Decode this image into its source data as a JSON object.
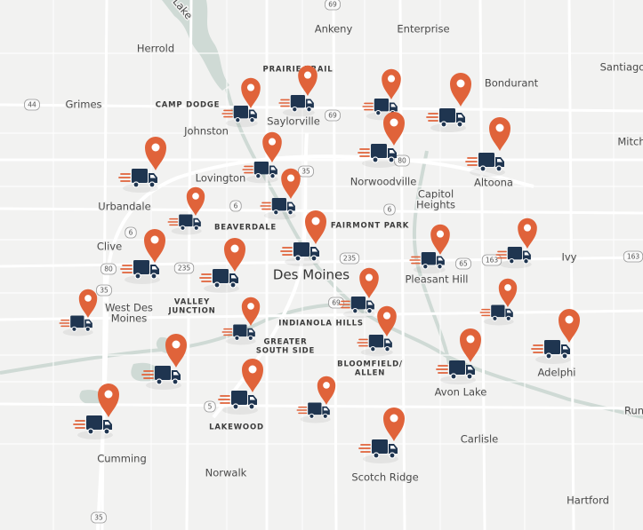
{
  "map": {
    "cities": [
      [
        "Lake"
      ],
      [
        "Ankeny"
      ],
      [
        "Enterprise"
      ],
      [
        "Herrold"
      ],
      [
        "Santiago"
      ],
      [
        "Bondurant"
      ],
      [
        "Grimes"
      ],
      [
        "Saylorville"
      ],
      [
        "Johnston"
      ],
      [
        "Mitch"
      ],
      [
        "Lovington"
      ],
      [
        "Norwoodville"
      ],
      [
        "Altoona"
      ],
      [
        "Capitol",
        "Heights"
      ],
      [
        "Urbandale"
      ],
      [
        "Clive"
      ],
      [
        "Ivy"
      ],
      [
        "Des Moines"
      ],
      [
        "Pleasant Hill"
      ],
      [
        "West Des",
        "Moines"
      ],
      [
        "Adelphi"
      ],
      [
        "Avon Lake"
      ],
      [
        "Run"
      ],
      [
        "Carlisle"
      ],
      [
        "Cumming"
      ],
      [
        "Norwalk"
      ],
      [
        "Scotch Ridge"
      ],
      [
        "Hartford"
      ]
    ],
    "districts": [
      [
        "PRAIRIE TRAIL"
      ],
      [
        "CAMP DODGE"
      ],
      [
        "BEAVERDALE"
      ],
      [
        "FAIRMONT PARK"
      ],
      [
        "VALLEY",
        "JUNCTION"
      ],
      [
        "INDIANOLA HILLS"
      ],
      [
        "GREATER",
        "SOUTH SIDE"
      ],
      [
        "BLOOMFIELD/",
        "ALLEN"
      ],
      [
        "LAKEWOOD"
      ]
    ],
    "routes": [
      "69",
      "44",
      "69",
      "35",
      "80",
      "6",
      "6",
      "6",
      "80",
      "235",
      "235",
      "65",
      "163",
      "163",
      "35",
      "69",
      "5",
      "35"
    ]
  }
}
